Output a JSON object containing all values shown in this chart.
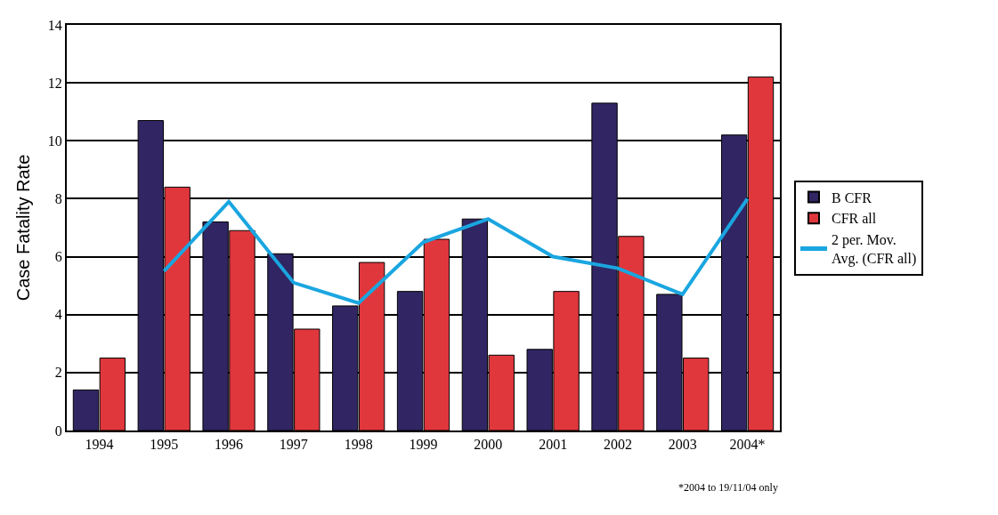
{
  "chart_data": {
    "type": "bar",
    "ylabel": "Case Fatality Rate",
    "categories": [
      "1994",
      "1995",
      "1996",
      "1997",
      "1998",
      "1999",
      "2000",
      "2001",
      "2002",
      "2003",
      "2004*"
    ],
    "series": [
      {
        "name": "B CFR",
        "color": "#312663",
        "values": [
          1.4,
          10.7,
          7.2,
          6.1,
          4.3,
          4.8,
          7.3,
          2.8,
          11.3,
          4.7,
          10.2
        ]
      },
      {
        "name": "CFR all",
        "color": "#e0373d",
        "values": [
          2.5,
          8.4,
          6.9,
          3.5,
          5.8,
          6.6,
          2.6,
          4.8,
          6.7,
          2.5,
          12.2
        ]
      },
      {
        "name": "2 per. Mov. Avg. (CFR all)",
        "type": "line",
        "color": "#1aa6e0",
        "marker": "none",
        "line_style": "solid",
        "values": [
          null,
          5.5,
          7.9,
          5.1,
          4.4,
          6.5,
          7.3,
          6.0,
          5.6,
          4.7,
          8.0
        ]
      }
    ],
    "ylim": [
      0,
      14
    ],
    "yticks": [
      0,
      2,
      4,
      6,
      8,
      10,
      12,
      14
    ],
    "grid": "y",
    "legend": "right",
    "annotations": [
      "*2004 to 19/11/04 only"
    ]
  }
}
